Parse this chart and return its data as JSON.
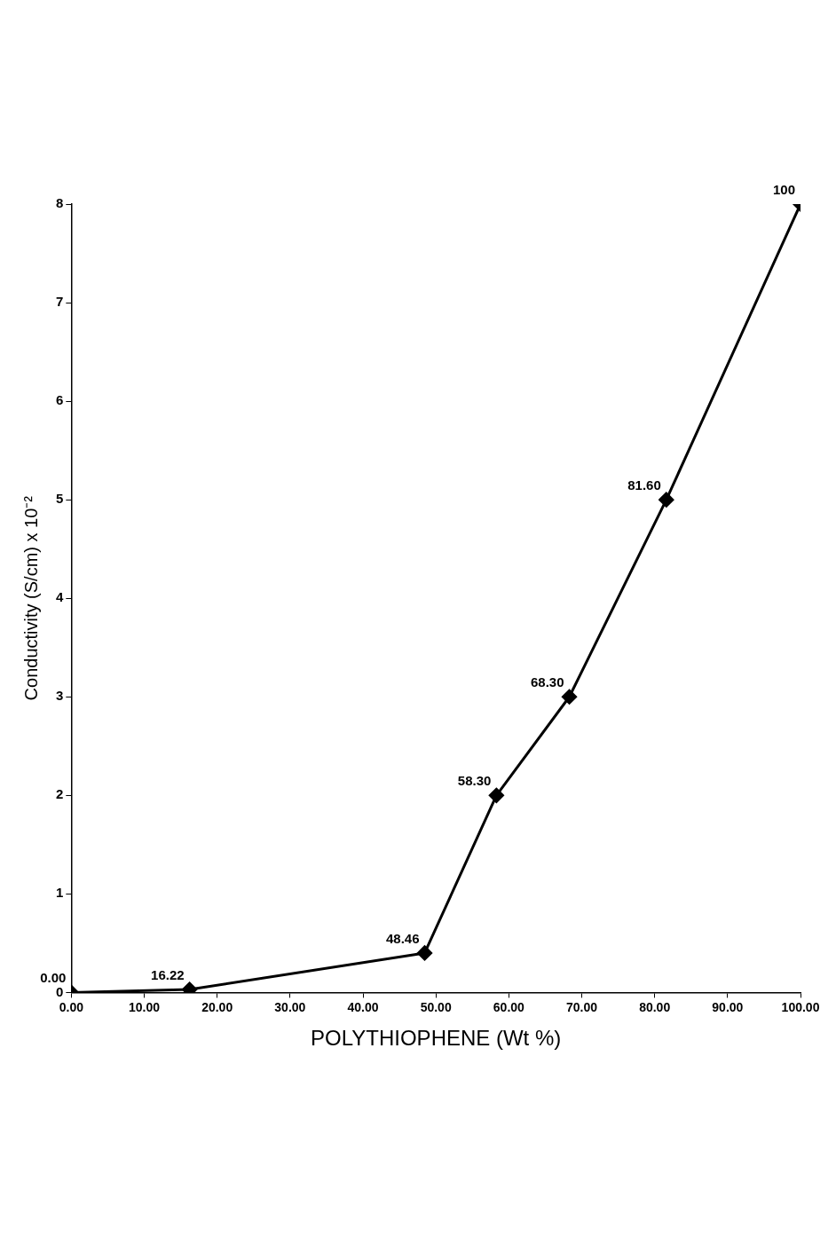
{
  "chart_data": {
    "type": "line",
    "xlabel": "POLYTHIOPHENE (Wt %)",
    "ylabel": "Conductivity (S/cm) x 10⁻²",
    "x": [
      0,
      16.22,
      48.46,
      58.3,
      68.3,
      81.6,
      100
    ],
    "series": [
      {
        "color": "#000000",
        "values": [
          0,
          0.03,
          0.4,
          2,
          3,
          5,
          8
        ]
      }
    ],
    "annotations": [
      {
        "text": "0.00",
        "x": 0,
        "y": 0
      },
      {
        "text": "16.22",
        "x": 16.22,
        "y": 0.03
      },
      {
        "text": "48.46",
        "x": 48.46,
        "y": 0.4
      },
      {
        "text": "58.30",
        "x": 58.3,
        "y": 2
      },
      {
        "text": "68.30",
        "x": 68.3,
        "y": 3
      },
      {
        "text": "81.60",
        "x": 81.6,
        "y": 5
      },
      {
        "text": "100",
        "x": 100,
        "y": 8
      }
    ],
    "xlim": [
      0,
      100
    ],
    "xticks": [
      {
        "value": 0,
        "label": "0.00"
      },
      {
        "value": 10,
        "label": "10.00"
      },
      {
        "value": 20,
        "label": "20.00"
      },
      {
        "value": 30,
        "label": "30.00"
      },
      {
        "value": 40,
        "label": "40.00"
      },
      {
        "value": 50,
        "label": "50.00"
      },
      {
        "value": 60,
        "label": "60.00"
      },
      {
        "value": 70,
        "label": "70.00"
      },
      {
        "value": 80,
        "label": "80.00"
      },
      {
        "value": 90,
        "label": "90.00"
      },
      {
        "value": 100,
        "label": "100.00"
      }
    ],
    "ylim": [
      0,
      8
    ],
    "yticks": [
      0,
      1,
      2,
      3,
      4,
      5,
      6,
      7,
      8
    ],
    "marker": "diamond",
    "line_style": "solid"
  }
}
